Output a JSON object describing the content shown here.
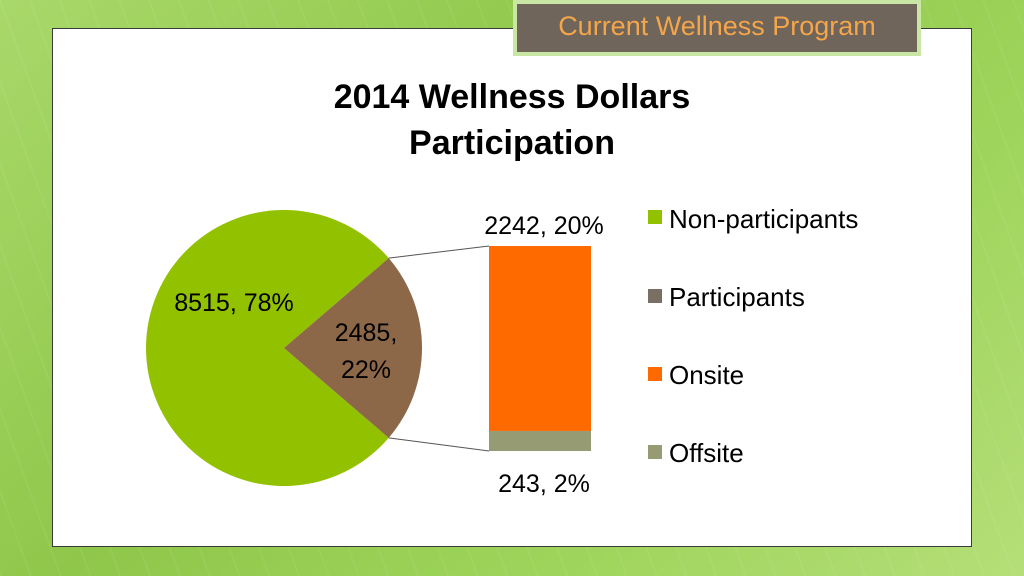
{
  "slide_title": "Current Wellness Program",
  "chart_data": {
    "type": "pie",
    "subtype": "bar-of-pie",
    "title_line1": "2014 Wellness Dollars",
    "title_line2": "Participation",
    "pie": [
      {
        "name": "Non-participants",
        "value": 8515,
        "percent": 78,
        "label": "8515, 78%",
        "color": "#92c100"
      },
      {
        "name": "Participants",
        "value": 2485,
        "percent": 22,
        "label_line1": "2485,",
        "label_line2": "22%",
        "color": "#8c6748"
      }
    ],
    "breakout": [
      {
        "name": "Onsite",
        "value": 2242,
        "percent": 20,
        "label": "2242, 20%",
        "color": "#ff6a00"
      },
      {
        "name": "Offsite",
        "value": 243,
        "percent": 2,
        "label": "243, 2%",
        "color": "#969b73"
      }
    ],
    "legend": [
      {
        "label": "Non-participants",
        "color": "#92c100"
      },
      {
        "label": "Participants",
        "color": "#7a6f65"
      },
      {
        "label": "Onsite",
        "color": "#ff6a00"
      },
      {
        "label": "Offsite",
        "color": "#969b73"
      }
    ],
    "legend_position": "right"
  }
}
